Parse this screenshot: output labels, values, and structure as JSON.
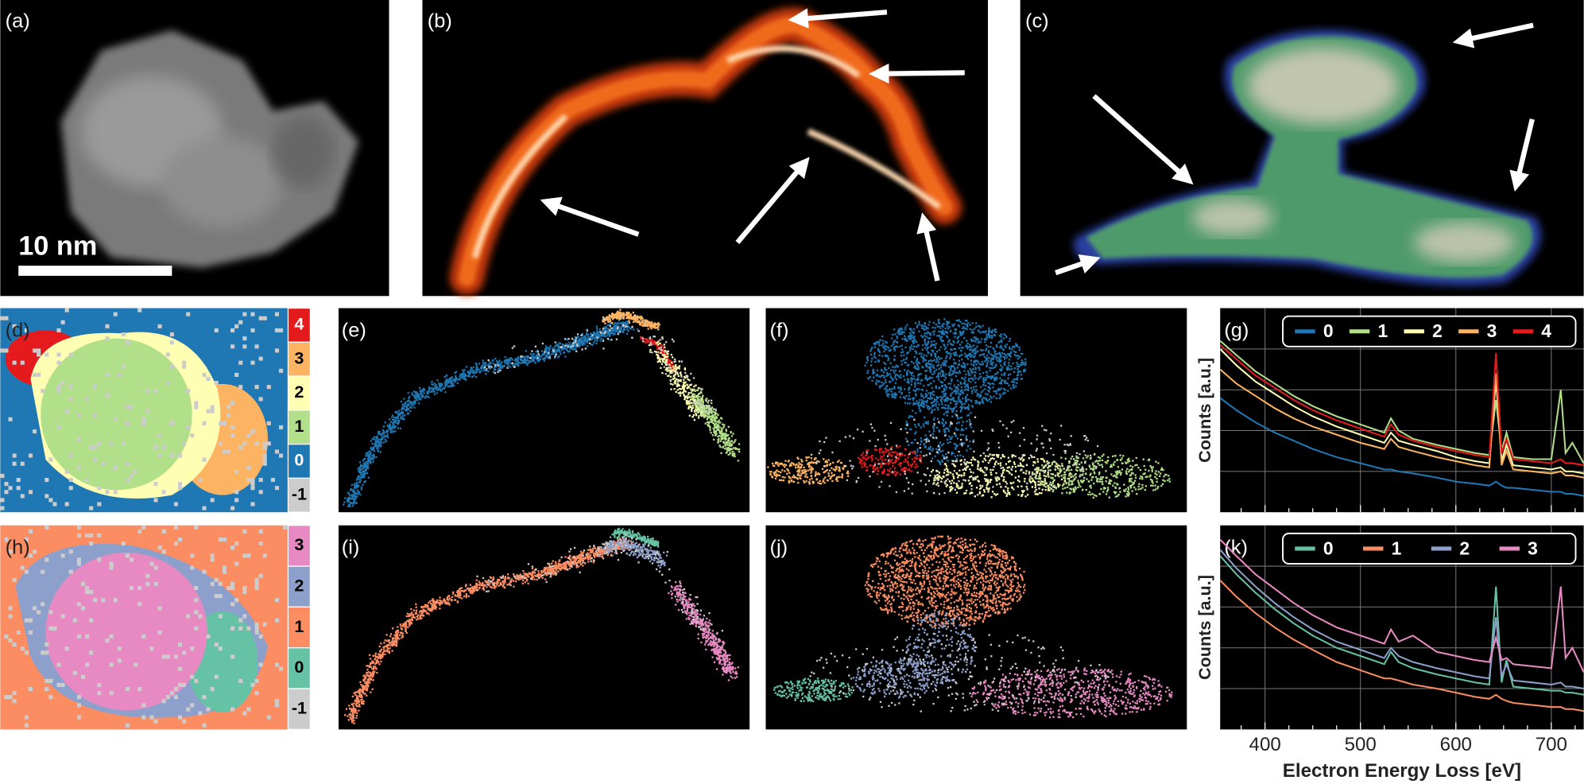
{
  "panel_labels": [
    "(a)",
    "(b)",
    "(c)",
    "(d)",
    "(e)",
    "(f)",
    "(g)",
    "(h)",
    "(i)",
    "(j)",
    "(k)"
  ],
  "scale_bar": "10 nm",
  "cluster_maps": [
    {
      "labels": [
        4,
        3,
        2,
        1,
        0,
        -1
      ],
      "colors": [
        "#e41a1c",
        "#fdb462",
        "#ffffb3",
        "#b2df8a",
        "#1f78b4",
        "#cccccc"
      ]
    },
    {
      "labels": [
        3,
        2,
        1,
        0,
        -1
      ],
      "colors": [
        "#e78ac3",
        "#8da0cb",
        "#fc8d62",
        "#66c2a5",
        "#cccccc"
      ]
    }
  ],
  "chart_data": [
    {
      "type": "line",
      "ylabel": "Counts [a.u.]",
      "grid": true,
      "xtick_labels": false,
      "ytick_labels": false,
      "xlim": [
        353,
        734
      ],
      "xticks": [
        400,
        500,
        600,
        700
      ],
      "ylim": [
        0,
        10
      ],
      "yticks": [
        2,
        4,
        6,
        8
      ],
      "x": [
        353,
        370,
        390,
        410,
        430,
        450,
        475,
        500,
        525,
        532,
        540,
        555,
        580,
        600,
        620,
        635,
        642,
        648,
        653,
        660,
        680,
        700,
        710,
        715,
        722,
        734
      ],
      "series": [
        {
          "name": "0",
          "color": "#1f78b4",
          "values": [
            5.6,
            5.0,
            4.4,
            3.9,
            3.5,
            3.1,
            2.7,
            2.4,
            2.1,
            2.1,
            2.0,
            1.9,
            1.7,
            1.5,
            1.4,
            1.3,
            1.5,
            1.3,
            1.2,
            1.2,
            1.1,
            1.0,
            1.0,
            0.9,
            0.9,
            0.8
          ]
        },
        {
          "name": "1",
          "color": "#b2df8a",
          "values": [
            8.4,
            7.7,
            6.9,
            6.3,
            5.7,
            5.2,
            4.7,
            4.3,
            3.9,
            4.6,
            4.0,
            3.6,
            3.3,
            3.1,
            2.9,
            2.8,
            5.5,
            3.0,
            3.9,
            2.7,
            2.6,
            2.6,
            6.0,
            2.9,
            3.4,
            2.4
          ]
        },
        {
          "name": "2",
          "color": "#ffffb3",
          "values": [
            8.0,
            7.2,
            6.4,
            5.8,
            5.2,
            4.7,
            4.2,
            3.8,
            3.4,
            3.9,
            3.5,
            3.3,
            3.0,
            2.7,
            2.5,
            2.4,
            6.5,
            2.5,
            3.3,
            2.3,
            2.2,
            2.1,
            2.2,
            2.0,
            2.0,
            1.9
          ]
        },
        {
          "name": "3",
          "color": "#fdb462",
          "values": [
            7.0,
            6.3,
            5.7,
            5.1,
            4.6,
            4.2,
            3.8,
            3.4,
            3.1,
            3.6,
            3.2,
            3.0,
            2.7,
            2.5,
            2.3,
            2.2,
            6.8,
            2.3,
            3.0,
            2.1,
            2.0,
            1.9,
            2.0,
            1.8,
            1.8,
            1.7
          ]
        },
        {
          "name": "4",
          "color": "#e41a1c",
          "values": [
            8.2,
            7.5,
            6.7,
            6.1,
            5.5,
            5.0,
            4.5,
            4.1,
            3.7,
            4.3,
            3.8,
            3.5,
            3.2,
            3.0,
            2.8,
            2.7,
            7.8,
            2.9,
            3.6,
            2.6,
            2.5,
            2.4,
            2.6,
            2.4,
            2.4,
            2.3
          ]
        }
      ]
    },
    {
      "type": "line",
      "ylabel": "Counts [a.u.]",
      "xlabel": "Electron Energy Loss [eV]",
      "grid": true,
      "xtick_labels": true,
      "ytick_labels": false,
      "xlim": [
        353,
        734
      ],
      "xticks": [
        400,
        500,
        600,
        700
      ],
      "ylim": [
        0,
        10
      ],
      "yticks": [
        2,
        4,
        6,
        8
      ],
      "x": [
        353,
        370,
        390,
        410,
        430,
        450,
        475,
        500,
        525,
        532,
        540,
        555,
        580,
        600,
        620,
        635,
        642,
        648,
        653,
        660,
        680,
        700,
        710,
        715,
        722,
        734
      ],
      "series": [
        {
          "name": "0",
          "color": "#66c2a5",
          "values": [
            8.5,
            7.6,
            6.7,
            5.9,
            5.2,
            4.6,
            4.0,
            3.6,
            3.2,
            3.8,
            3.3,
            3.0,
            2.7,
            2.5,
            2.3,
            2.2,
            7.0,
            2.3,
            3.4,
            2.1,
            2.0,
            1.9,
            1.9,
            1.8,
            1.8,
            1.7
          ]
        },
        {
          "name": "1",
          "color": "#fc8d62",
          "values": [
            7.3,
            6.5,
            5.7,
            5.0,
            4.4,
            3.9,
            3.3,
            2.9,
            2.5,
            2.5,
            2.4,
            2.2,
            2.0,
            1.8,
            1.6,
            1.5,
            1.7,
            1.5,
            1.4,
            1.3,
            1.2,
            1.1,
            1.1,
            1.0,
            1.0,
            0.9
          ]
        },
        {
          "name": "2",
          "color": "#8da0cb",
          "values": [
            8.8,
            7.9,
            7.0,
            6.2,
            5.5,
            4.9,
            4.3,
            3.9,
            3.5,
            4.0,
            3.6,
            3.3,
            3.0,
            2.8,
            2.6,
            2.5,
            5.5,
            2.6,
            3.2,
            2.4,
            2.3,
            2.2,
            2.3,
            2.1,
            2.1,
            2.0
          ]
        },
        {
          "name": "3",
          "color": "#e78ac3",
          "values": [
            9.3,
            8.5,
            7.6,
            6.9,
            6.2,
            5.6,
            5.0,
            4.6,
            4.2,
            4.9,
            4.3,
            4.6,
            3.8,
            3.6,
            3.4,
            3.3,
            4.5,
            3.4,
            3.5,
            3.2,
            3.1,
            3.0,
            7.0,
            3.5,
            4.0,
            2.8
          ]
        }
      ]
    }
  ]
}
